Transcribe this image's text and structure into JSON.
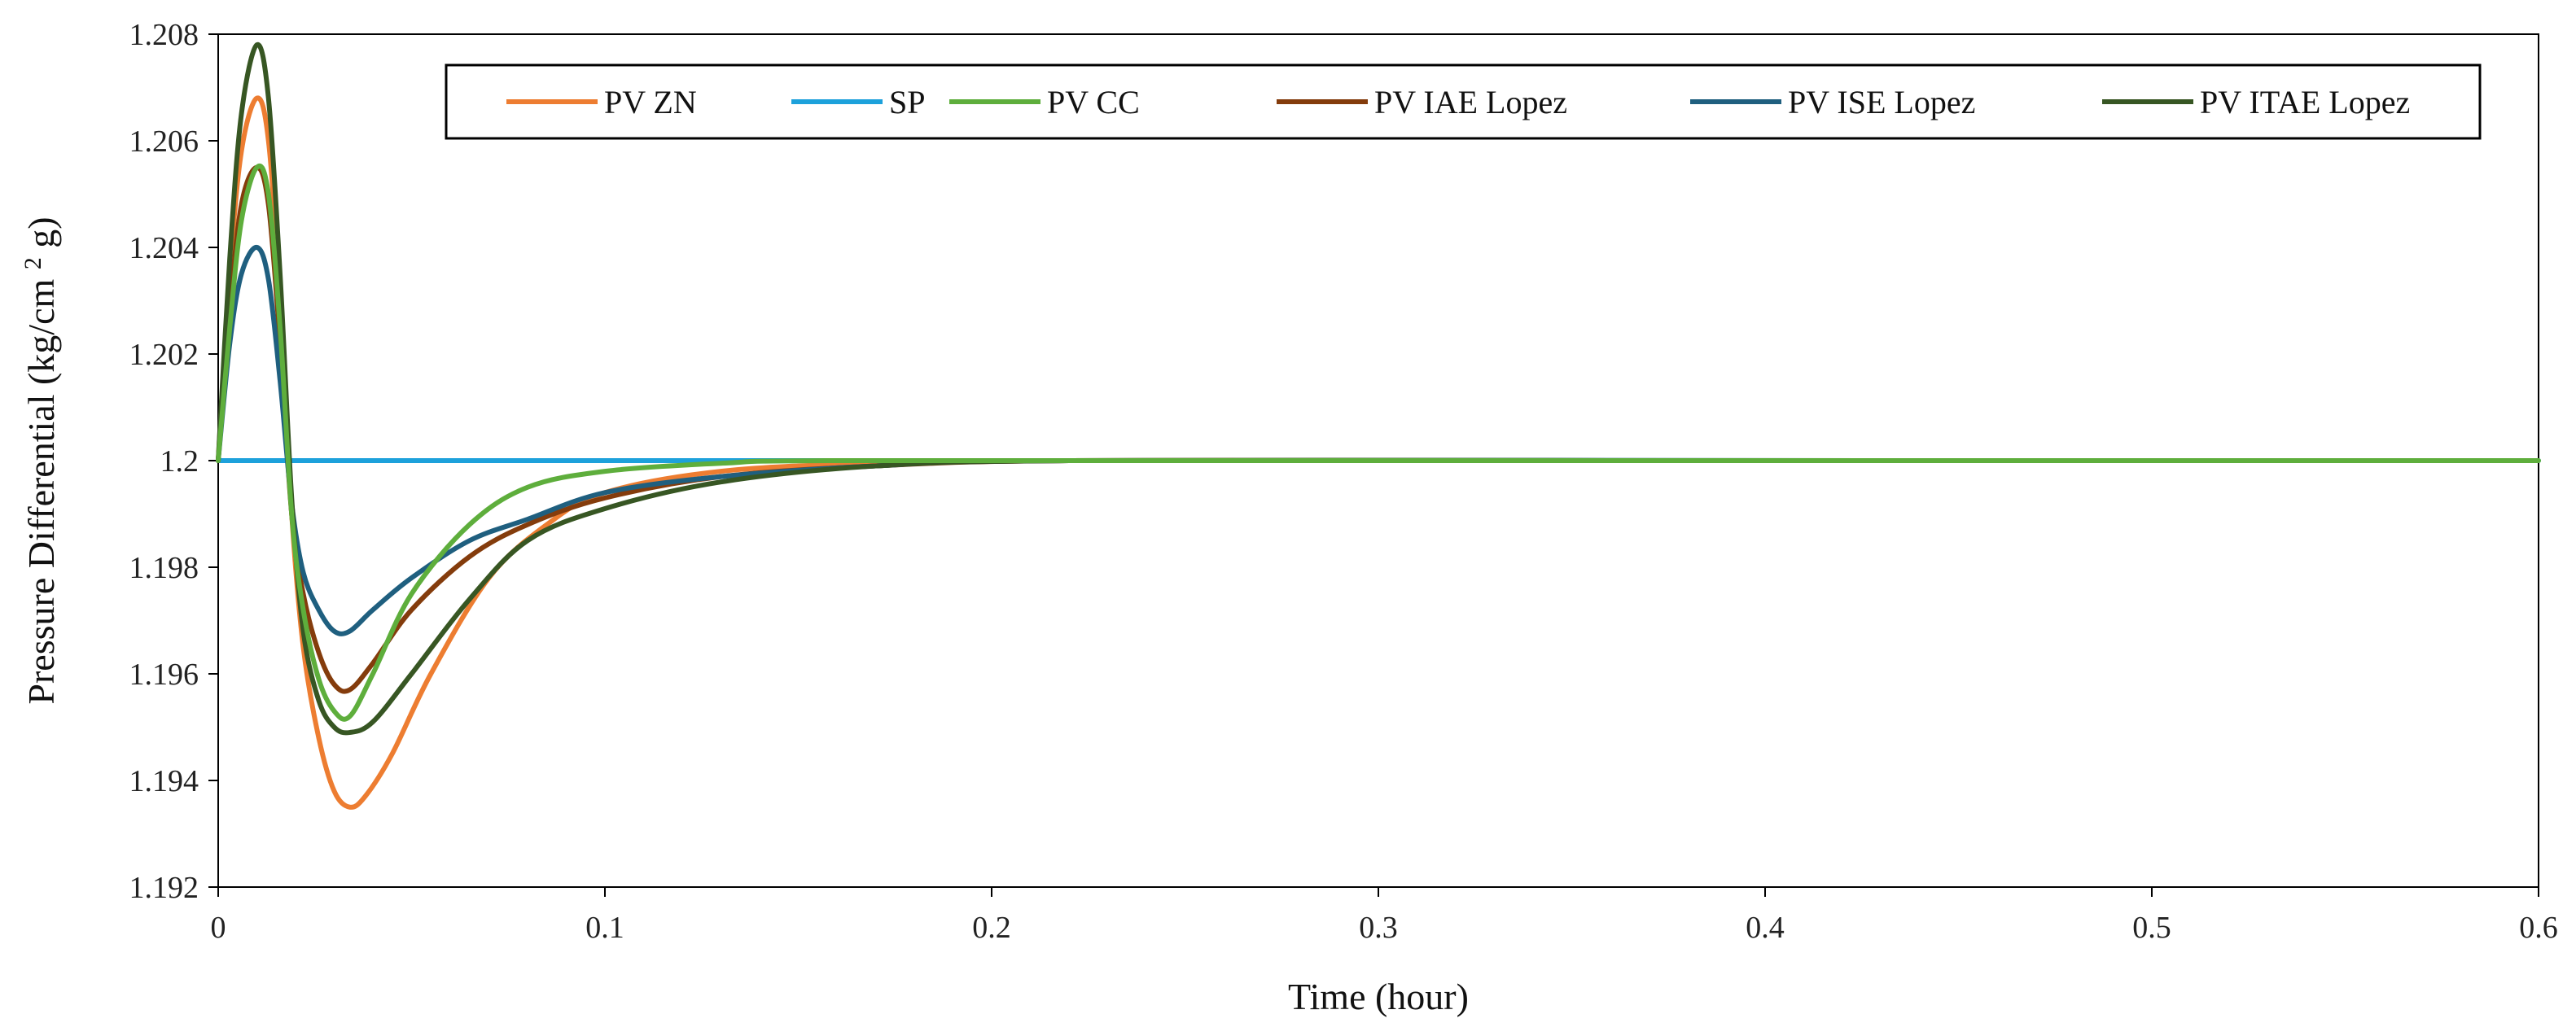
{
  "chart_data": {
    "type": "line",
    "xlabel": "Time (hour)",
    "ylabel": {
      "prefix": "Pressure Differential (kg/cm",
      "sup": "2",
      "suffix": "g)"
    },
    "xlim": [
      0,
      0.6
    ],
    "ylim": [
      1.192,
      1.208
    ],
    "x_ticks": [
      0,
      0.1,
      0.2,
      0.3,
      0.4,
      0.5,
      0.6
    ],
    "x_tick_labels": [
      "0",
      "0.1",
      "0.2",
      "0.3",
      "0.4",
      "0.5",
      "0.6"
    ],
    "y_ticks": [
      1.192,
      1.194,
      1.196,
      1.198,
      1.2,
      1.202,
      1.204,
      1.206,
      1.208
    ],
    "y_tick_labels": [
      "1.192",
      "1.194",
      "1.196",
      "1.198",
      "1.2",
      "1.202",
      "1.204",
      "1.206",
      "1.208"
    ],
    "grid": false,
    "legend_position": "top-right",
    "series": [
      {
        "name": "PV ZN",
        "color": "#ED7D31",
        "points": [
          [
            0,
            1.2
          ],
          [
            0.003,
            1.2035
          ],
          [
            0.006,
            1.2058
          ],
          [
            0.01,
            1.2068
          ],
          [
            0.013,
            1.206
          ],
          [
            0.016,
            1.203
          ],
          [
            0.019,
            1.199
          ],
          [
            0.022,
            1.1965
          ],
          [
            0.026,
            1.1948
          ],
          [
            0.03,
            1.1938
          ],
          [
            0.034,
            1.1935
          ],
          [
            0.038,
            1.1937
          ],
          [
            0.045,
            1.1945
          ],
          [
            0.055,
            1.196
          ],
          [
            0.07,
            1.1978
          ],
          [
            0.085,
            1.1988
          ],
          [
            0.1,
            1.1994
          ],
          [
            0.13,
            1.1998
          ],
          [
            0.17,
            1.19995
          ],
          [
            0.22,
            1.2
          ],
          [
            0.3,
            1.2
          ],
          [
            0.36,
            1.2
          ]
        ]
      },
      {
        "name": "SP",
        "color": "#1DA1DB",
        "points": [
          [
            0,
            1.2
          ],
          [
            0.6,
            1.2
          ]
        ]
      },
      {
        "name": "PV CC",
        "color": "#5EAE3C",
        "points": [
          [
            0,
            1.2
          ],
          [
            0.003,
            1.2025
          ],
          [
            0.006,
            1.2045
          ],
          [
            0.01,
            1.2055
          ],
          [
            0.013,
            1.205
          ],
          [
            0.016,
            1.2025
          ],
          [
            0.019,
            1.199
          ],
          [
            0.022,
            1.1972
          ],
          [
            0.026,
            1.1959
          ],
          [
            0.03,
            1.1953
          ],
          [
            0.034,
            1.1952
          ],
          [
            0.04,
            1.196
          ],
          [
            0.05,
            1.1975
          ],
          [
            0.065,
            1.1988
          ],
          [
            0.08,
            1.1995
          ],
          [
            0.1,
            1.1998
          ],
          [
            0.13,
            1.19995
          ],
          [
            0.16,
            1.2
          ],
          [
            0.3,
            1.2
          ],
          [
            0.6,
            1.2
          ]
        ]
      },
      {
        "name": "PV IAE Lopez",
        "color": "#843C0C",
        "points": [
          [
            0,
            1.2
          ],
          [
            0.003,
            1.2028
          ],
          [
            0.006,
            1.2048
          ],
          [
            0.01,
            1.2055
          ],
          [
            0.013,
            1.2048
          ],
          [
            0.016,
            1.2022
          ],
          [
            0.019,
            1.199
          ],
          [
            0.022,
            1.1975
          ],
          [
            0.026,
            1.1964
          ],
          [
            0.03,
            1.1958
          ],
          [
            0.034,
            1.1957
          ],
          [
            0.04,
            1.1962
          ],
          [
            0.05,
            1.1972
          ],
          [
            0.065,
            1.1982
          ],
          [
            0.08,
            1.1988
          ],
          [
            0.1,
            1.1993
          ],
          [
            0.13,
            1.1997
          ],
          [
            0.17,
            1.1999
          ],
          [
            0.22,
            1.2
          ],
          [
            0.36,
            1.2
          ]
        ]
      },
      {
        "name": "PV ISE Lopez",
        "color": "#1F5F7F",
        "points": [
          [
            0,
            1.2
          ],
          [
            0.003,
            1.2022
          ],
          [
            0.006,
            1.2035
          ],
          [
            0.01,
            1.204
          ],
          [
            0.013,
            1.2034
          ],
          [
            0.016,
            1.2015
          ],
          [
            0.019,
            1.1992
          ],
          [
            0.022,
            1.1979
          ],
          [
            0.026,
            1.1972
          ],
          [
            0.03,
            1.1968
          ],
          [
            0.034,
            1.1968
          ],
          [
            0.04,
            1.1972
          ],
          [
            0.05,
            1.1978
          ],
          [
            0.065,
            1.1985
          ],
          [
            0.08,
            1.1989
          ],
          [
            0.1,
            1.1994
          ],
          [
            0.13,
            1.1997
          ],
          [
            0.17,
            1.1999
          ],
          [
            0.22,
            1.2
          ],
          [
            0.43,
            1.2
          ]
        ]
      },
      {
        "name": "PV ITAE Lopez",
        "color": "#375623",
        "points": [
          [
            0,
            1.2
          ],
          [
            0.003,
            1.2038
          ],
          [
            0.006,
            1.2065
          ],
          [
            0.01,
            1.2078
          ],
          [
            0.013,
            1.2068
          ],
          [
            0.016,
            1.2035
          ],
          [
            0.019,
            1.1993
          ],
          [
            0.022,
            1.1968
          ],
          [
            0.026,
            1.1955
          ],
          [
            0.03,
            1.195
          ],
          [
            0.034,
            1.1949
          ],
          [
            0.04,
            1.1951
          ],
          [
            0.05,
            1.196
          ],
          [
            0.065,
            1.1974
          ],
          [
            0.08,
            1.1985
          ],
          [
            0.1,
            1.1991
          ],
          [
            0.13,
            1.1996
          ],
          [
            0.17,
            1.1999
          ],
          [
            0.22,
            1.2
          ],
          [
            0.36,
            1.2
          ]
        ]
      }
    ]
  }
}
